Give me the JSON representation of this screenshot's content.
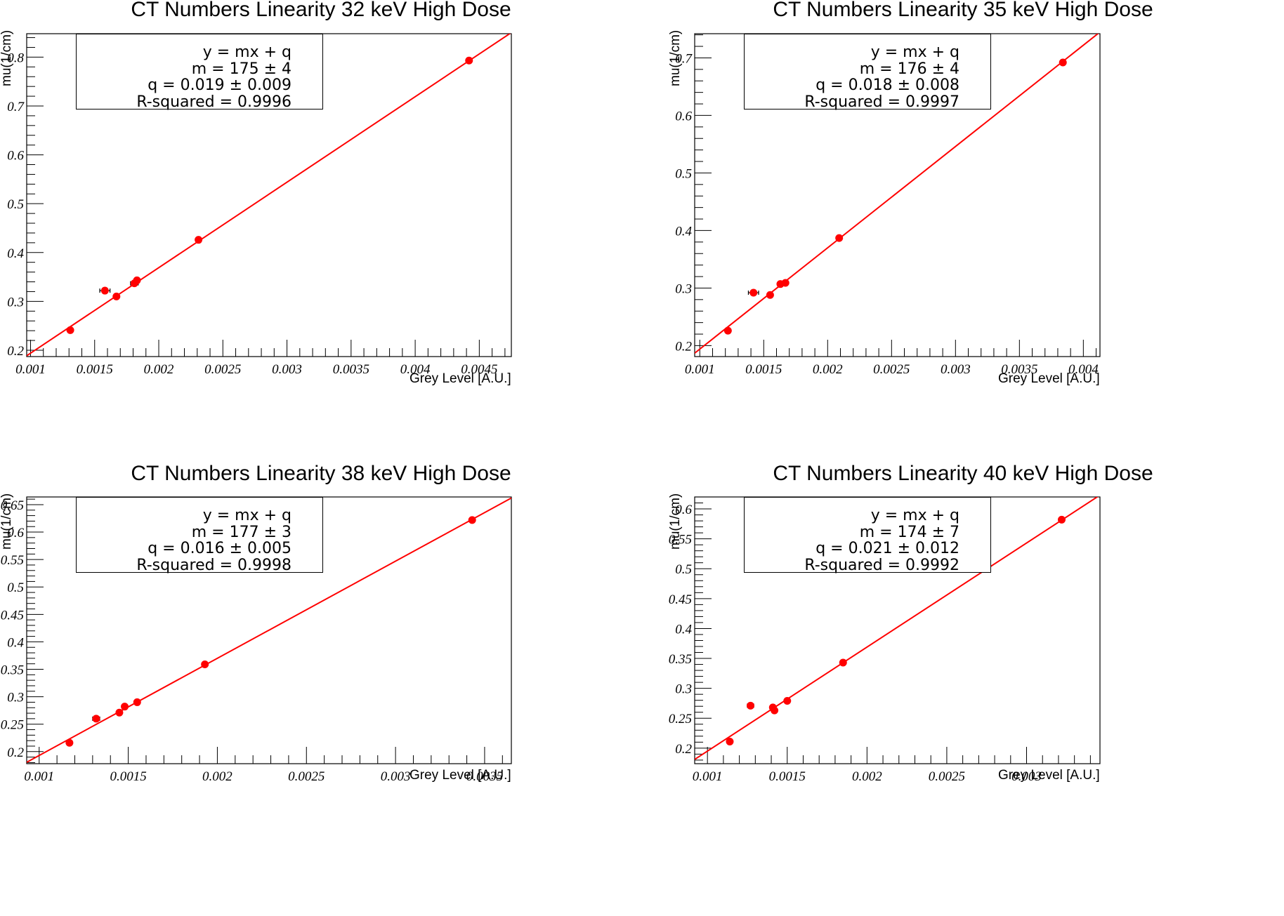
{
  "figure": {
    "panels": [
      {
        "title": "CT Numbers Linearity 32 keV High Dose",
        "xlabel": "Grey Level [A.U.]",
        "ylabel": "mu(1/cm)",
        "legend": [
          "y = mx + q",
          "m = 175 ± 4",
          "q = 0.019 ± 0.009",
          "R-squared = 0.9996"
        ]
      },
      {
        "title": "CT Numbers Linearity 35 keV High Dose",
        "xlabel": "Grey Level [A.U.]",
        "ylabel": "mu(1/cm)",
        "legend": [
          "y = mx + q",
          "m = 176 ± 4",
          "q = 0.018 ± 0.008",
          "R-squared = 0.9997"
        ]
      },
      {
        "title": "CT Numbers Linearity 38 keV High Dose",
        "xlabel": "Grey Level [A.U.]",
        "ylabel": "mu(1/cm)",
        "legend": [
          "y = mx + q",
          "m = 177 ± 3",
          "q = 0.016 ± 0.005",
          "R-squared = 0.9998"
        ]
      },
      {
        "title": "CT Numbers Linearity 40 keV High Dose",
        "xlabel": "Grey Level [A.U.]",
        "ylabel": "mu(1/cm)",
        "legend": [
          "y = mx + q",
          "m = 174 ± 7",
          "q = 0.021 ± 0.012",
          "R-squared = 0.9992"
        ]
      }
    ]
  },
  "colors": {
    "data": "#ff0000",
    "fit": "#ff0000",
    "axis": "#000000"
  },
  "chart_data": [
    {
      "type": "scatter",
      "title": "CT Numbers Linearity 32 keV High Dose",
      "xlabel": "Grey Level [A.U.]",
      "ylabel": "mu(1/cm)",
      "xlim": [
        0.00097,
        0.00475
      ],
      "ylim": [
        0.187,
        0.848
      ],
      "xticks": [
        "0.001",
        "0.0015",
        "0.002",
        "0.0025",
        "0.003",
        "0.0035",
        "0.004",
        "0.0045"
      ],
      "yticks": [
        "0.2",
        "0.3",
        "0.4",
        "0.5",
        "0.6",
        "0.7",
        "0.8"
      ],
      "series": [
        {
          "name": "data",
          "x": [
            0.00131,
            0.00158,
            0.00167,
            0.00181,
            0.00183,
            0.00231,
            0.00442
          ],
          "y": [
            0.241,
            0.322,
            0.31,
            0.337,
            0.343,
            0.426,
            0.793
          ],
          "xerr": [
            1e-05,
            4e-05,
            1e-05,
            3e-05,
            1e-05,
            1e-05,
            2e-05
          ]
        },
        {
          "name": "fit",
          "type": "line",
          "m": 175,
          "q": 0.019
        }
      ],
      "annotations": [
        "y = mx + q",
        "m = 175 ± 4",
        "q = 0.019 ± 0.009",
        "R-squared = 0.9996"
      ],
      "grid": false
    },
    {
      "type": "scatter",
      "title": "CT Numbers Linearity 35 keV High Dose",
      "xlabel": "Grey Level [A.U.]",
      "ylabel": "mu(1/cm)",
      "xlim": [
        0.00096,
        0.00413
      ],
      "ylim": [
        0.181,
        0.742
      ],
      "xticks": [
        "0.001",
        "0.0015",
        "0.002",
        "0.0025",
        "0.003",
        "0.0035",
        "0.004"
      ],
      "yticks": [
        "0.2",
        "0.3",
        "0.4",
        "0.5",
        "0.6",
        "0.7"
      ],
      "series": [
        {
          "name": "data",
          "x": [
            0.00122,
            0.00142,
            0.00155,
            0.00163,
            0.00167,
            0.00209,
            0.00384
          ],
          "y": [
            0.226,
            0.292,
            0.288,
            0.307,
            0.309,
            0.387,
            0.692
          ],
          "xerr": [
            1e-05,
            4e-05,
            1e-05,
            1e-05,
            1e-05,
            1e-05,
            2e-05
          ]
        },
        {
          "name": "fit",
          "type": "line",
          "m": 176,
          "q": 0.018
        }
      ],
      "annotations": [
        "y = mx + q",
        "m = 176 ± 4",
        "q = 0.018 ± 0.008",
        "R-squared = 0.9997"
      ],
      "grid": false
    },
    {
      "type": "scatter",
      "title": "CT Numbers Linearity 38 keV High Dose",
      "xlabel": "Grey Level [A.U.]",
      "ylabel": "mu(1/cm)",
      "xlim": [
        0.00093,
        0.00365
      ],
      "ylim": [
        0.178,
        0.664
      ],
      "xticks": [
        "0.001",
        "0.0015",
        "0.002",
        "0.0025",
        "0.003",
        "0.0035"
      ],
      "yticks": [
        "0.2",
        "0.25",
        "0.3",
        "0.35",
        "0.4",
        "0.45",
        "0.5",
        "0.55",
        "0.6",
        "0.65"
      ],
      "series": [
        {
          "name": "data",
          "x": [
            0.00117,
            0.00132,
            0.00145,
            0.00148,
            0.00155,
            0.00193,
            0.00343
          ],
          "y": [
            0.216,
            0.26,
            0.271,
            0.282,
            0.29,
            0.359,
            0.622
          ],
          "xerr": [
            1e-05,
            2e-05,
            1e-05,
            1e-05,
            1e-05,
            1e-05,
            1e-05
          ]
        },
        {
          "name": "fit",
          "type": "line",
          "m": 177,
          "q": 0.016
        }
      ],
      "annotations": [
        "y = mx + q",
        "m = 177 ± 3",
        "q = 0.016 ± 0.005",
        "R-squared = 0.9998"
      ],
      "grid": false
    },
    {
      "type": "scatter",
      "title": "CT Numbers Linearity 40 keV High Dose",
      "xlabel": "Grey Level [A.U.]",
      "ylabel": "mu(1/cm)",
      "xlim": [
        0.00092,
        0.00346
      ],
      "ylim": [
        0.174,
        0.62
      ],
      "xticks": [
        "0.001",
        "0.0015",
        "0.002",
        "0.0025",
        "0.003"
      ],
      "yticks": [
        "0.2",
        "0.25",
        "0.3",
        "0.35",
        "0.4",
        "0.45",
        "0.5",
        "0.55",
        "0.6"
      ],
      "series": [
        {
          "name": "data",
          "x": [
            0.00114,
            0.00127,
            0.00141,
            0.00142,
            0.0015,
            0.00185,
            0.00322
          ],
          "y": [
            0.211,
            0.271,
            0.268,
            0.263,
            0.279,
            0.343,
            0.582
          ],
          "xerr": [
            1e-05,
            2e-05,
            1e-05,
            1e-05,
            1e-05,
            1e-05,
            1e-05
          ]
        },
        {
          "name": "fit",
          "type": "line",
          "m": 174,
          "q": 0.021
        }
      ],
      "annotations": [
        "y = mx + q",
        "m = 174 ± 7",
        "q = 0.021 ± 0.012",
        "R-squared = 0.9992"
      ],
      "grid": false
    }
  ]
}
